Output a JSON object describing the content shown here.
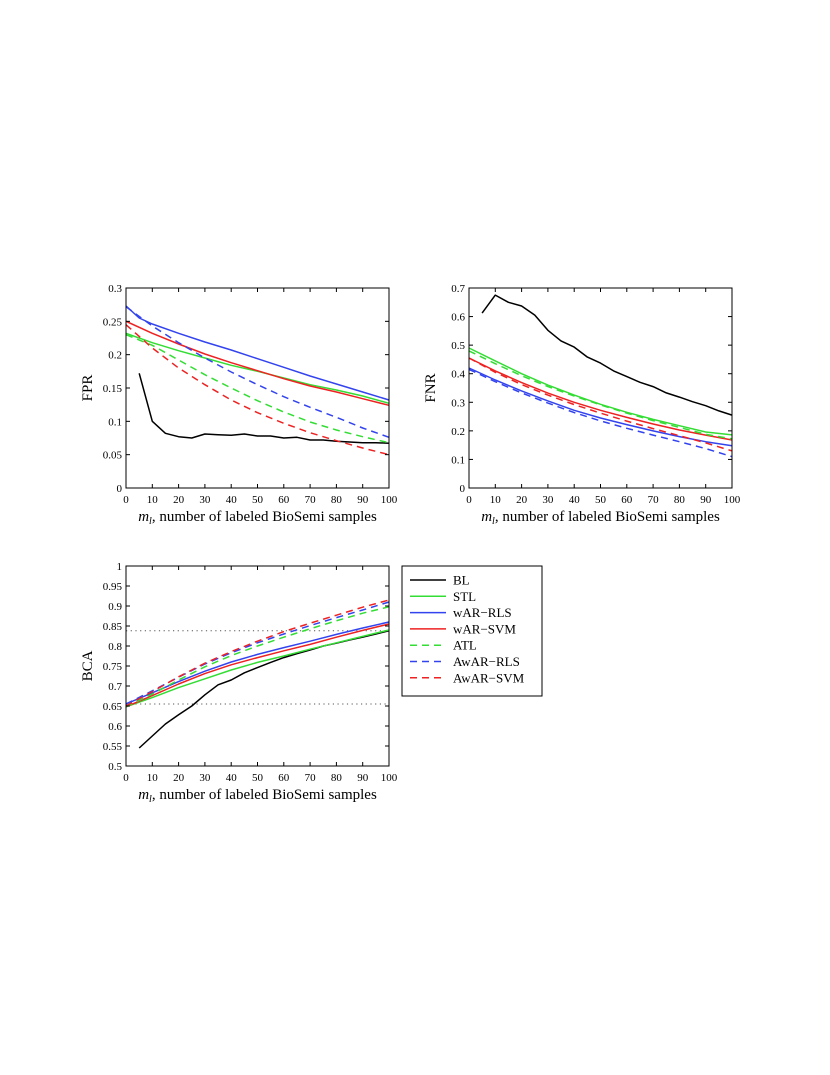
{
  "chart_data": [
    {
      "type": "line",
      "title": "",
      "xlabel_math": "m",
      "xlabel_sub": "l",
      "xlabel_rest": ", number of labeled BioSemi samples",
      "ylabel": "FPR",
      "xlim": [
        0,
        100
      ],
      "ylim": [
        0,
        0.3
      ],
      "xticks": [
        0,
        10,
        20,
        30,
        40,
        50,
        60,
        70,
        80,
        90,
        100
      ],
      "yticks": [
        0,
        0.05,
        0.1,
        0.15,
        0.2,
        0.25,
        0.3
      ],
      "ytick_labels": [
        "0",
        "0.05",
        "0.1",
        "0.15",
        "0.2",
        "0.25",
        "0.3"
      ],
      "series": [
        {
          "key": "BL",
          "x": [
            5,
            10,
            15,
            20,
            25,
            30,
            35,
            40,
            45,
            50,
            55,
            60,
            65,
            70,
            75,
            80,
            85,
            90,
            95,
            100
          ],
          "y": [
            0.172,
            0.1,
            0.082,
            0.077,
            0.075,
            0.081,
            0.08,
            0.079,
            0.081,
            0.078,
            0.078,
            0.075,
            0.076,
            0.072,
            0.072,
            0.07,
            0.069,
            0.068,
            0.068,
            0.067
          ]
        },
        {
          "key": "STL",
          "x": [
            0,
            10,
            20,
            30,
            40,
            50,
            60,
            70,
            80,
            90,
            100
          ],
          "y": [
            0.232,
            0.218,
            0.206,
            0.195,
            0.184,
            0.175,
            0.165,
            0.155,
            0.147,
            0.138,
            0.127
          ]
        },
        {
          "key": "wAR-RLS",
          "x": [
            0,
            5,
            10,
            20,
            30,
            40,
            50,
            60,
            70,
            80,
            90,
            100
          ],
          "y": [
            0.273,
            0.255,
            0.246,
            0.232,
            0.219,
            0.207,
            0.194,
            0.181,
            0.168,
            0.156,
            0.144,
            0.132
          ]
        },
        {
          "key": "wAR-SVM",
          "x": [
            0,
            10,
            20,
            30,
            40,
            50,
            60,
            70,
            80,
            90,
            100
          ],
          "y": [
            0.25,
            0.232,
            0.216,
            0.201,
            0.188,
            0.176,
            0.164,
            0.153,
            0.144,
            0.134,
            0.124
          ]
        },
        {
          "key": "ATL",
          "x": [
            0,
            10,
            20,
            30,
            40,
            50,
            60,
            70,
            80,
            90,
            100
          ],
          "y": [
            0.23,
            0.214,
            0.192,
            0.17,
            0.15,
            0.131,
            0.114,
            0.099,
            0.087,
            0.077,
            0.068
          ]
        },
        {
          "key": "AwAR-RLS",
          "x": [
            0,
            10,
            20,
            30,
            40,
            50,
            60,
            70,
            80,
            90,
            100
          ],
          "y": [
            0.272,
            0.243,
            0.218,
            0.195,
            0.174,
            0.155,
            0.137,
            0.121,
            0.106,
            0.09,
            0.076
          ]
        },
        {
          "key": "AwAR-SVM",
          "x": [
            0,
            10,
            20,
            30,
            40,
            50,
            60,
            70,
            80,
            90,
            100
          ],
          "y": [
            0.245,
            0.21,
            0.18,
            0.155,
            0.132,
            0.113,
            0.097,
            0.083,
            0.071,
            0.06,
            0.05
          ]
        }
      ]
    },
    {
      "type": "line",
      "title": "",
      "xlabel_math": "m",
      "xlabel_sub": "l",
      "xlabel_rest": ", number of labeled BioSemi samples",
      "ylabel": "FNR",
      "xlim": [
        0,
        100
      ],
      "ylim": [
        0,
        0.7
      ],
      "xticks": [
        0,
        10,
        20,
        30,
        40,
        50,
        60,
        70,
        80,
        90,
        100
      ],
      "yticks": [
        0,
        0.1,
        0.2,
        0.3,
        0.4,
        0.5,
        0.6,
        0.7
      ],
      "ytick_labels": [
        "0",
        "0.1",
        "0.2",
        "0.3",
        "0.4",
        "0.5",
        "0.6",
        "0.7"
      ],
      "series": [
        {
          "key": "BL",
          "x": [
            5,
            10,
            15,
            20,
            25,
            30,
            35,
            40,
            45,
            50,
            55,
            60,
            65,
            70,
            75,
            80,
            85,
            90,
            95,
            100
          ],
          "y": [
            0.612,
            0.675,
            0.65,
            0.637,
            0.605,
            0.552,
            0.515,
            0.493,
            0.458,
            0.437,
            0.41,
            0.39,
            0.37,
            0.355,
            0.333,
            0.318,
            0.302,
            0.288,
            0.27,
            0.255
          ]
        },
        {
          "key": "STL",
          "x": [
            0,
            10,
            20,
            30,
            40,
            50,
            60,
            70,
            80,
            90,
            100
          ],
          "y": [
            0.49,
            0.445,
            0.4,
            0.36,
            0.325,
            0.293,
            0.265,
            0.24,
            0.218,
            0.196,
            0.186
          ]
        },
        {
          "key": "wAR-RLS",
          "x": [
            0,
            10,
            20,
            30,
            40,
            50,
            60,
            70,
            80,
            90,
            100
          ],
          "y": [
            0.42,
            0.378,
            0.34,
            0.305,
            0.272,
            0.245,
            0.222,
            0.2,
            0.18,
            0.162,
            0.148
          ]
        },
        {
          "key": "wAR-SVM",
          "x": [
            0,
            10,
            20,
            30,
            40,
            50,
            60,
            70,
            80,
            90,
            100
          ],
          "y": [
            0.455,
            0.41,
            0.369,
            0.332,
            0.3,
            0.272,
            0.247,
            0.224,
            0.203,
            0.185,
            0.168
          ]
        },
        {
          "key": "ATL",
          "x": [
            0,
            10,
            20,
            30,
            40,
            50,
            60,
            70,
            80,
            90,
            100
          ],
          "y": [
            0.48,
            0.435,
            0.393,
            0.355,
            0.322,
            0.291,
            0.262,
            0.236,
            0.212,
            0.188,
            0.172
          ]
        },
        {
          "key": "AwAR-RLS",
          "x": [
            0,
            10,
            20,
            30,
            40,
            50,
            60,
            70,
            80,
            90,
            100
          ],
          "y": [
            0.415,
            0.372,
            0.333,
            0.297,
            0.264,
            0.235,
            0.209,
            0.185,
            0.162,
            0.138,
            0.11
          ]
        },
        {
          "key": "AwAR-SVM",
          "x": [
            0,
            10,
            20,
            30,
            40,
            50,
            60,
            70,
            80,
            90,
            100
          ],
          "y": [
            0.455,
            0.405,
            0.362,
            0.325,
            0.292,
            0.262,
            0.234,
            0.208,
            0.183,
            0.158,
            0.13
          ]
        }
      ]
    },
    {
      "type": "line",
      "title": "",
      "xlabel_math": "m",
      "xlabel_sub": "l",
      "xlabel_rest": ", number of labeled BioSemi samples",
      "ylabel": "BCA",
      "xlim": [
        0,
        100
      ],
      "ylim": [
        0.5,
        1
      ],
      "xticks": [
        0,
        10,
        20,
        30,
        40,
        50,
        60,
        70,
        80,
        90,
        100
      ],
      "yticks": [
        0.5,
        0.55,
        0.6,
        0.65,
        0.7,
        0.75,
        0.8,
        0.85,
        0.9,
        0.95,
        1
      ],
      "ytick_labels": [
        "0.5",
        "0.55",
        "0.6",
        "0.65",
        "0.7",
        "0.75",
        "0.8",
        "0.85",
        "0.9",
        "0.95",
        "1"
      ],
      "reference_lines": [
        0.655,
        0.838
      ],
      "series": [
        {
          "key": "BL",
          "x": [
            5,
            10,
            15,
            20,
            25,
            30,
            35,
            40,
            45,
            50,
            55,
            60,
            65,
            70,
            75,
            80,
            85,
            90,
            95,
            100
          ],
          "y": [
            0.545,
            0.575,
            0.605,
            0.628,
            0.65,
            0.678,
            0.703,
            0.715,
            0.733,
            0.746,
            0.759,
            0.771,
            0.781,
            0.79,
            0.8,
            0.807,
            0.815,
            0.822,
            0.83,
            0.838
          ]
        },
        {
          "key": "STL",
          "x": [
            0,
            10,
            20,
            30,
            40,
            50,
            60,
            70,
            80,
            90,
            100
          ],
          "y": [
            0.648,
            0.671,
            0.696,
            0.718,
            0.74,
            0.759,
            0.775,
            0.792,
            0.808,
            0.824,
            0.84
          ]
        },
        {
          "key": "wAR-RLS",
          "x": [
            0,
            10,
            20,
            30,
            40,
            50,
            60,
            70,
            80,
            90,
            100
          ],
          "y": [
            0.655,
            0.683,
            0.711,
            0.737,
            0.76,
            0.779,
            0.796,
            0.812,
            0.829,
            0.845,
            0.86
          ]
        },
        {
          "key": "wAR-SVM",
          "x": [
            0,
            10,
            20,
            30,
            40,
            50,
            60,
            70,
            80,
            90,
            100
          ],
          "y": [
            0.648,
            0.676,
            0.705,
            0.731,
            0.753,
            0.771,
            0.788,
            0.804,
            0.822,
            0.839,
            0.855
          ]
        },
        {
          "key": "ATL",
          "x": [
            0,
            10,
            20,
            30,
            40,
            50,
            60,
            70,
            80,
            90,
            100
          ],
          "y": [
            0.648,
            0.68,
            0.715,
            0.748,
            0.776,
            0.8,
            0.822,
            0.843,
            0.863,
            0.882,
            0.898
          ]
        },
        {
          "key": "AwAR-RLS",
          "x": [
            0,
            10,
            20,
            30,
            40,
            50,
            60,
            70,
            80,
            90,
            100
          ],
          "y": [
            0.655,
            0.688,
            0.722,
            0.755,
            0.783,
            0.808,
            0.83,
            0.851,
            0.871,
            0.89,
            0.91
          ]
        },
        {
          "key": "AwAR-SVM",
          "x": [
            0,
            10,
            20,
            30,
            40,
            50,
            60,
            70,
            80,
            90,
            100
          ],
          "y": [
            0.65,
            0.686,
            0.723,
            0.757,
            0.786,
            0.812,
            0.836,
            0.857,
            0.877,
            0.897,
            0.915
          ]
        }
      ]
    }
  ],
  "legend": {
    "placement": "right of bottom plot",
    "entries": [
      {
        "key": "BL",
        "label": "BL",
        "color": "#000000",
        "dash": "solid"
      },
      {
        "key": "STL",
        "label": "STL",
        "color": "#33dd33",
        "dash": "solid"
      },
      {
        "key": "wAR-RLS",
        "label": "wAR−RLS",
        "color": "#3344ee",
        "dash": "solid"
      },
      {
        "key": "wAR-SVM",
        "label": "wAR−SVM",
        "color": "#ee2222",
        "dash": "solid"
      },
      {
        "key": "ATL",
        "label": "ATL",
        "color": "#33dd33",
        "dash": "dashed"
      },
      {
        "key": "AwAR-RLS",
        "label": "AwAR−RLS",
        "color": "#3344ee",
        "dash": "dashed"
      },
      {
        "key": "AwAR-SVM",
        "label": "AwAR−SVM",
        "color": "#ee2222",
        "dash": "dashed"
      }
    ]
  }
}
